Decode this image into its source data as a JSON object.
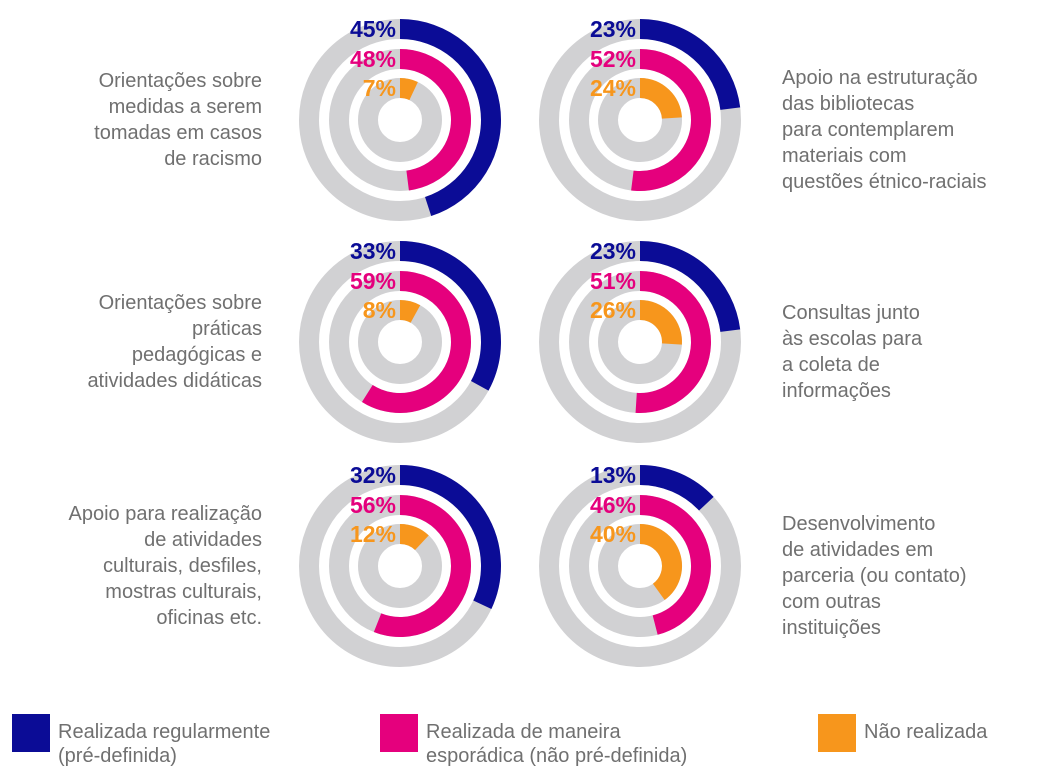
{
  "chart_data": {
    "type": "radial_bar",
    "ylim": [
      0,
      100
    ],
    "series": [
      {
        "name": "Realizada regularmente\n(pré-definida)",
        "color": "#0b0c96"
      },
      {
        "name": "Realizada de maneira\nesporádica (não pré-definida)",
        "color": "#e5007d"
      },
      {
        "name": "Não realizada",
        "color": "#f7961c"
      }
    ],
    "track_color": "#d1d1d3",
    "panels": [
      {
        "title": "Orientações sobre\nmedidas a serem\ntomadas em casos\nde racismo",
        "values": [
          45,
          48,
          7
        ],
        "value_labels": [
          "45%",
          "48%",
          "7%"
        ]
      },
      {
        "title": "Apoio na estruturação\ndas bibliotecas\npara contemplarem\nmateriais com\nquestões étnico-raciais",
        "values": [
          23,
          52,
          24
        ],
        "value_labels": [
          "23%",
          "52%",
          "24%"
        ]
      },
      {
        "title": "Orientações sobre\npráticas\npedagógicas e\natividades didáticas",
        "values": [
          33,
          59,
          8
        ],
        "value_labels": [
          "33%",
          "59%",
          "8%"
        ]
      },
      {
        "title": "Consultas junto\nàs escolas para\na coleta de\ninformações",
        "values": [
          23,
          51,
          26
        ],
        "value_labels": [
          "23%",
          "51%",
          "26%"
        ]
      },
      {
        "title": "Apoio para realização\nde atividades\nculturais, desfiles,\nmostras culturais,\noficinas etc.",
        "values": [
          32,
          56,
          12
        ],
        "value_labels": [
          "32%",
          "56%",
          "12%"
        ]
      },
      {
        "title": "Desenvolvimento\nde atividades em\nparceria  (ou contato)\ncom outras\ninstituições",
        "values": [
          13,
          46,
          40
        ],
        "value_labels": [
          "13%",
          "46%",
          "40%"
        ]
      }
    ]
  }
}
